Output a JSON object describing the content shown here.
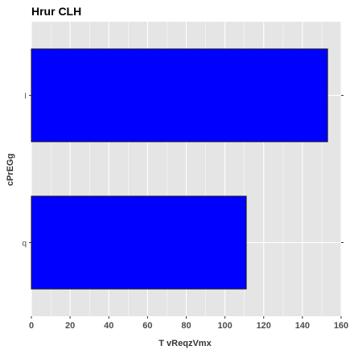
{
  "chart_data": {
    "type": "bar",
    "orientation": "horizontal",
    "title": "Hrur  CLH",
    "xlabel": "T vReqzVmx",
    "ylabel": "cPrEGg",
    "categories": [
      "I",
      "q"
    ],
    "values": [
      153,
      111
    ],
    "xlim": [
      0,
      160
    ],
    "xticks": [
      0,
      20,
      40,
      60,
      80,
      100,
      120,
      140,
      160
    ],
    "grid": true,
    "legend": "none",
    "colors": {
      "bar_fill": "#0000ff",
      "bar_stroke": "#1a1a1a",
      "panel_bg": "#e5e5e5",
      "grid": "#ffffff"
    }
  }
}
